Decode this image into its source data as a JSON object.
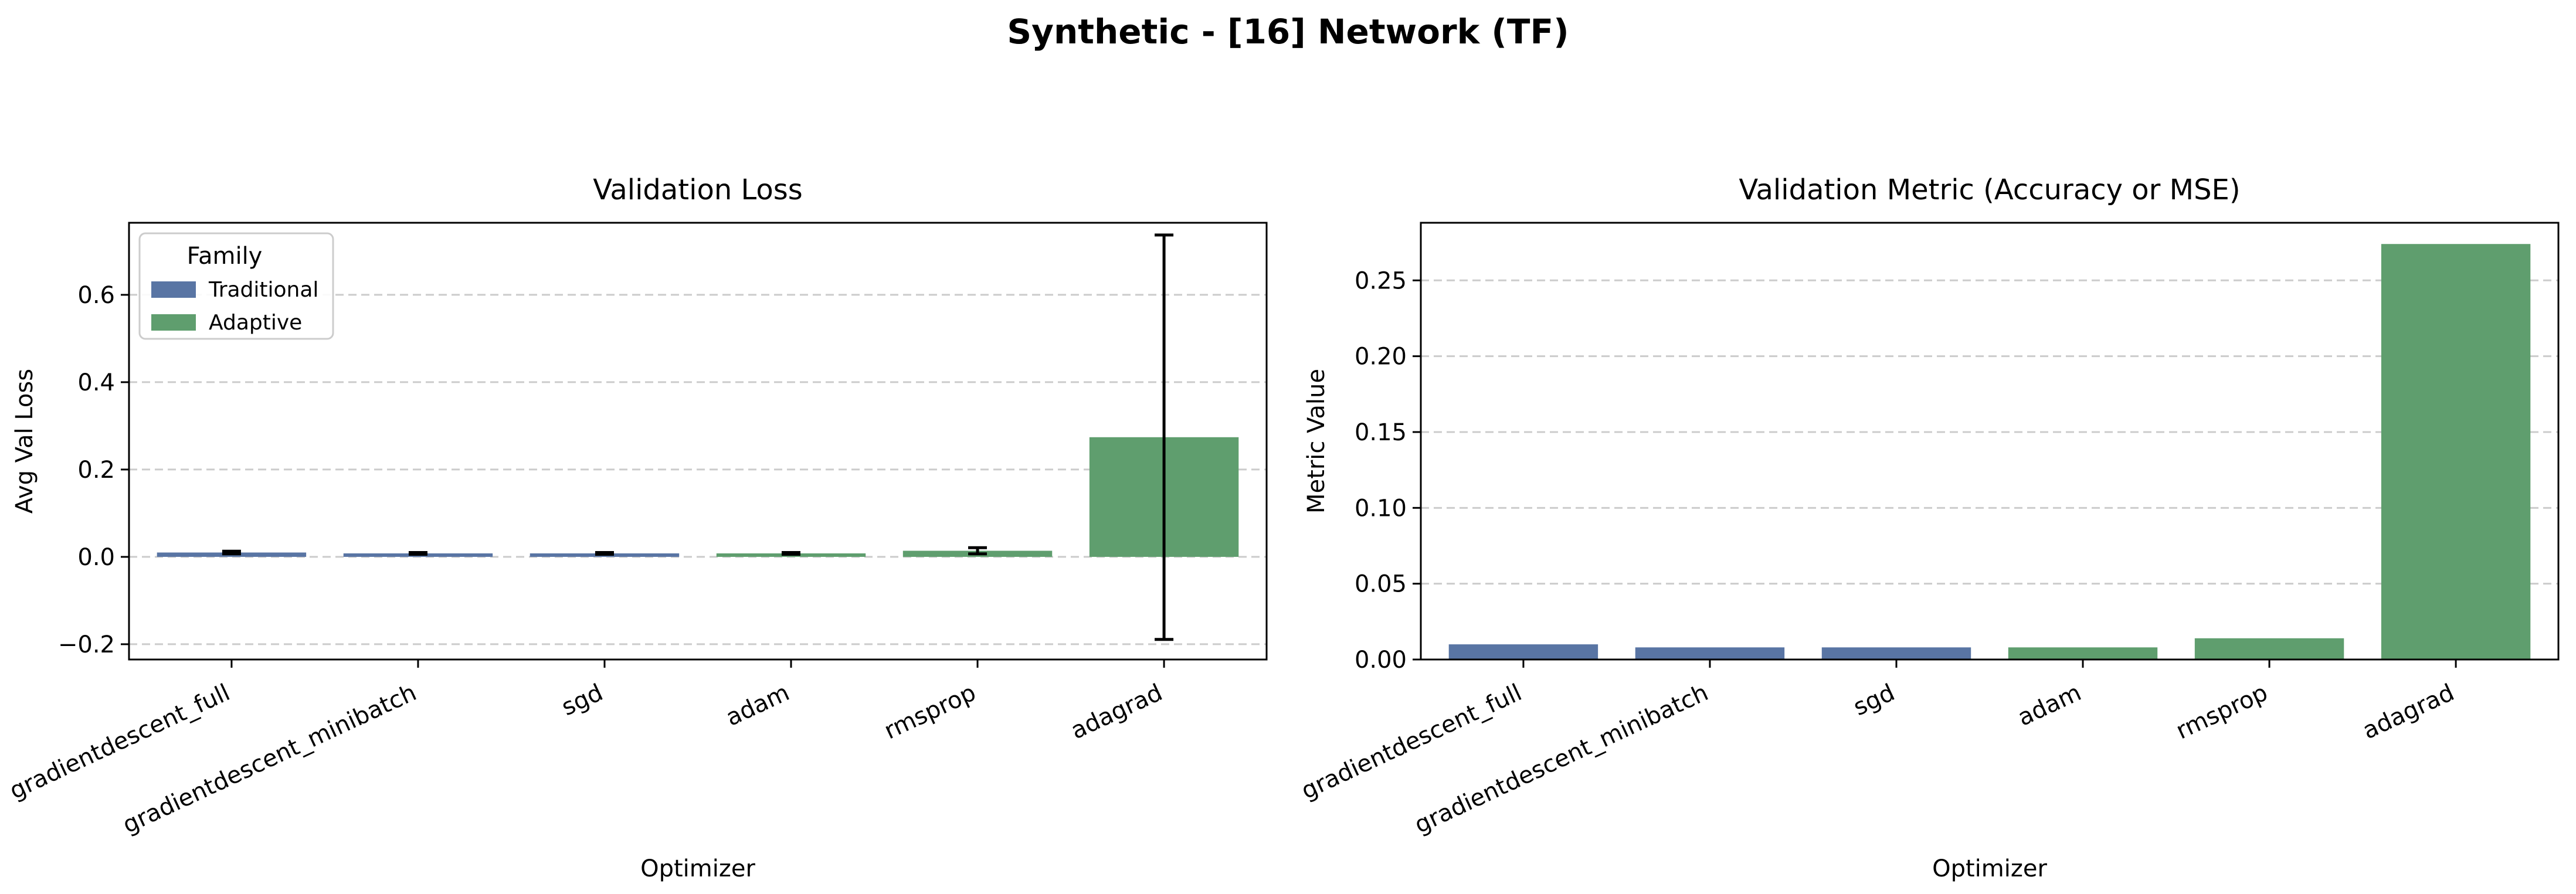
{
  "figure": {
    "title": "Synthetic - [16] Network (TF)"
  },
  "colors": {
    "Traditional": "#5975a4",
    "Adaptive": "#5f9e6e",
    "grid": "#cccccc",
    "errorbar": "#000000"
  },
  "chart_data": [
    {
      "type": "bar",
      "title": "Validation Loss",
      "xlabel": "Optimizer",
      "ylabel": "Avg Val Loss",
      "categories": [
        "gradientdescent_full",
        "gradientdescent_minibatch",
        "sgd",
        "adam",
        "rmsprop",
        "adagrad"
      ],
      "families": [
        "Traditional",
        "Traditional",
        "Traditional",
        "Adaptive",
        "Adaptive",
        "Adaptive"
      ],
      "values": [
        0.01,
        0.008,
        0.008,
        0.008,
        0.014,
        0.274
      ],
      "errors": [
        0.003,
        0.002,
        0.002,
        0.002,
        0.007,
        0.463
      ],
      "ylim": [
        -0.235,
        0.765
      ],
      "yticks": [
        -0.2,
        0.0,
        0.2,
        0.4,
        0.6
      ],
      "ytick_labels": [
        "−0.2",
        "0.0",
        "0.2",
        "0.4",
        "0.6"
      ],
      "grid": "y-dashed",
      "legend": {
        "title": "Family",
        "placement": "upper-left",
        "entries": [
          "Traditional",
          "Adaptive"
        ]
      }
    },
    {
      "type": "bar",
      "title": "Validation Metric (Accuracy or MSE)",
      "xlabel": "Optimizer",
      "ylabel": "Metric Value",
      "categories": [
        "gradientdescent_full",
        "gradientdescent_minibatch",
        "sgd",
        "adam",
        "rmsprop",
        "adagrad"
      ],
      "families": [
        "Traditional",
        "Traditional",
        "Traditional",
        "Adaptive",
        "Adaptive",
        "Adaptive"
      ],
      "values": [
        0.01,
        0.008,
        0.008,
        0.008,
        0.014,
        0.274
      ],
      "ylim": [
        0.0,
        0.288
      ],
      "yticks": [
        0.0,
        0.05,
        0.1,
        0.15,
        0.2,
        0.25
      ],
      "ytick_labels": [
        "0.00",
        "0.05",
        "0.10",
        "0.15",
        "0.20",
        "0.25"
      ],
      "grid": "y-dashed"
    }
  ]
}
